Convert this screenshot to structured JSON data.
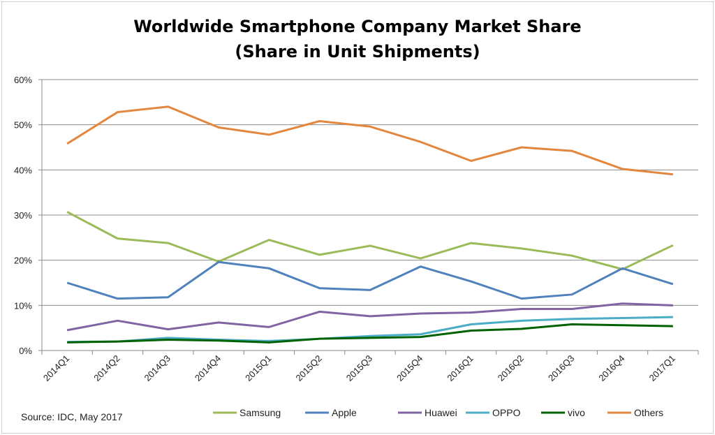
{
  "chart_data": {
    "type": "line",
    "title": "Worldwide Smartphone Company Market Share",
    "subtitle": "(Share in Unit Shipments)",
    "xlabel": "",
    "ylabel": "",
    "ylim": [
      0,
      60
    ],
    "yticks": [
      "0%",
      "10%",
      "20%",
      "30%",
      "40%",
      "50%",
      "60%"
    ],
    "grid": true,
    "legend_position": "bottom",
    "source": "Source: IDC, May 2017",
    "categories": [
      "2014Q1",
      "2014Q2",
      "2014Q3",
      "2014Q4",
      "2015Q1",
      "2015Q2",
      "2015Q3",
      "2015Q4",
      "2016Q1",
      "2016Q2",
      "2016Q3",
      "2016Q4",
      "2017Q1"
    ],
    "series": [
      {
        "name": "Samsung",
        "color": "#9bbb59",
        "values": [
          30.7,
          24.8,
          23.8,
          19.7,
          24.5,
          21.2,
          23.2,
          20.4,
          23.8,
          22.6,
          21.0,
          18.0,
          23.3
        ]
      },
      {
        "name": "Apple",
        "color": "#4f81bd",
        "values": [
          15.0,
          11.5,
          11.8,
          19.6,
          18.2,
          13.8,
          13.4,
          18.6,
          15.3,
          11.5,
          12.4,
          18.2,
          14.7
        ]
      },
      {
        "name": "Huawei",
        "color": "#8064a2",
        "values": [
          4.5,
          6.6,
          4.7,
          6.2,
          5.2,
          8.6,
          7.6,
          8.2,
          8.4,
          9.2,
          9.2,
          10.4,
          10.0
        ]
      },
      {
        "name": "OPPO",
        "color": "#4bacc6",
        "values": [
          1.9,
          2.0,
          2.8,
          2.4,
          2.1,
          2.6,
          3.2,
          3.6,
          5.8,
          6.6,
          7.0,
          7.2,
          7.4
        ]
      },
      {
        "name": "vivo",
        "color": "#006100",
        "values": [
          1.8,
          2.0,
          2.4,
          2.2,
          1.8,
          2.6,
          2.8,
          3.0,
          4.4,
          4.8,
          5.8,
          5.6,
          5.4
        ]
      },
      {
        "name": "Others",
        "color": "#e3863e",
        "values": [
          45.8,
          52.8,
          54.0,
          49.4,
          47.8,
          50.8,
          49.6,
          46.2,
          42.0,
          45.0,
          44.2,
          40.2,
          39.0
        ]
      }
    ]
  }
}
